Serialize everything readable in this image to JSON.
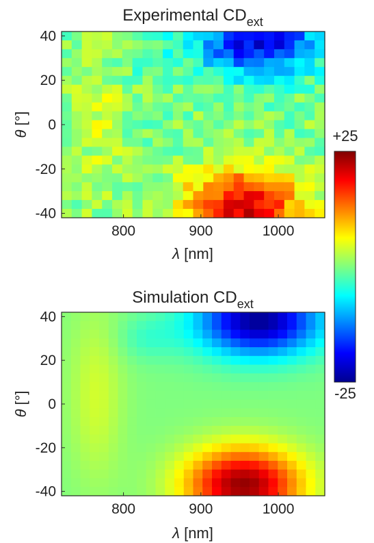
{
  "chart_data": [
    {
      "type": "heatmap",
      "title": "Experimental CD",
      "title_subscript": "ext",
      "xlabel_symbol": "λ",
      "xlabel_unit": "[nm]",
      "ylabel_symbol": "θ",
      "ylabel_unit": "[°]",
      "xlim": [
        720,
        1060
      ],
      "ylim": [
        -42,
        42
      ],
      "x_ticks": [
        800,
        900,
        1000
      ],
      "y_ticks": [
        40,
        20,
        0,
        -20,
        -40
      ],
      "z_range": [
        -25,
        25
      ],
      "x_grid": [
        720,
        1060,
        26
      ],
      "y_grid": [
        -42,
        42,
        21
      ],
      "colormap": "jet",
      "description_of_values": "CD values in colorbar units; negative (blue) at upper-right, positive (red) at lower-center-right",
      "noise": true
    },
    {
      "type": "heatmap",
      "title": "Simulation CD",
      "title_subscript": "ext",
      "xlabel_symbol": "λ",
      "xlabel_unit": "[nm]",
      "ylabel_symbol": "θ",
      "ylabel_unit": "[°]",
      "xlim": [
        720,
        1060
      ],
      "ylim": [
        -42,
        42
      ],
      "x_ticks": [
        800,
        900,
        1000
      ],
      "y_ticks": [
        40,
        20,
        0,
        -20,
        -40
      ],
      "z_range": [
        -25,
        25
      ],
      "x_grid": [
        720,
        1060,
        28
      ],
      "y_grid": [
        -42,
        42,
        21
      ],
      "colormap": "jet",
      "noise": false
    }
  ],
  "colorbar": {
    "max_label": "+25",
    "min_label": "-25",
    "colormap": "jet"
  },
  "colors": {
    "axis": "#262626",
    "background": "#ffffff"
  }
}
